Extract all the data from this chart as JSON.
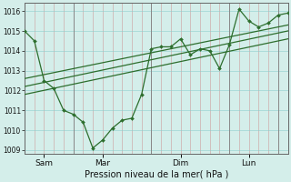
{
  "xlabel": "Pression niveau de la mer( hPa )",
  "bg_color": "#d4eeea",
  "line_color": "#2d6e2d",
  "ylim": [
    1008.8,
    1016.4
  ],
  "yticks": [
    1009,
    1010,
    1011,
    1012,
    1013,
    1014,
    1015,
    1016
  ],
  "xtick_positions": [
    2,
    8,
    16,
    23
  ],
  "xtick_labels": [
    "Sam",
    "Mar",
    "Dim",
    "Lun"
  ],
  "xmin": 0,
  "xmax": 27,
  "n_vlines": 28,
  "main_line_x": [
    0,
    1,
    2,
    3,
    4,
    5,
    6,
    7,
    8,
    9,
    10,
    11,
    12,
    13,
    14,
    15,
    16,
    17,
    18,
    19,
    20,
    21,
    22,
    23,
    24,
    25,
    26,
    27
  ],
  "main_line_y": [
    1015.0,
    1014.5,
    1012.5,
    1012.1,
    1011.0,
    1010.8,
    1010.4,
    1009.1,
    1009.5,
    1010.1,
    1010.5,
    1010.6,
    1011.8,
    1014.1,
    1014.2,
    1014.2,
    1014.6,
    1013.8,
    1014.1,
    1014.0,
    1013.1,
    1014.3,
    1016.1,
    1015.5,
    1015.2,
    1015.4,
    1015.8,
    1015.9
  ],
  "trend1_x": [
    0,
    27
  ],
  "trend1_y": [
    1012.6,
    1015.3
  ],
  "trend2_x": [
    0,
    27
  ],
  "trend2_y": [
    1012.2,
    1015.0
  ],
  "trend3_x": [
    0,
    27
  ],
  "trend3_y": [
    1011.8,
    1014.6
  ],
  "day_vlines": [
    0,
    5,
    13,
    21,
    26
  ]
}
